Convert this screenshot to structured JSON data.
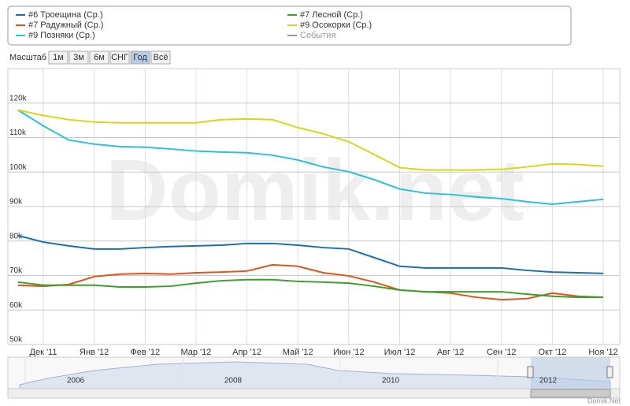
{
  "chart_data": {
    "type": "line",
    "categories": [
      null,
      "Дек '11",
      null,
      "Янв '12",
      null,
      "Фев '12",
      null,
      "Мар '12",
      null,
      "Апр '12",
      null,
      "Май '12",
      null,
      "Июн '12",
      null,
      "Июл '12",
      null,
      "Авг '12",
      null,
      "Сен '12",
      null,
      "Окт '12",
      null,
      "Ноя '12"
    ],
    "series": [
      {
        "name": "#6 Троещина (Ср.)",
        "color": "#1a6fae",
        "values": [
          81600,
          79700,
          78600,
          77700,
          77700,
          78100,
          78400,
          78600,
          78800,
          79300,
          79300,
          78800,
          78100,
          77700,
          75200,
          72700,
          72200,
          72200,
          72200,
          72200,
          71500,
          71000,
          70800,
          70600
        ]
      },
      {
        "name": "#7 Радужный (Ср.)",
        "color": "#e0541a",
        "values": [
          67200,
          66900,
          67400,
          69700,
          70400,
          70600,
          70400,
          70800,
          71000,
          71300,
          73100,
          72700,
          70800,
          69900,
          68100,
          65800,
          65300,
          64900,
          63700,
          63000,
          63300,
          64900,
          64000,
          63700
        ]
      },
      {
        "name": "#9 Позняки (Ср.)",
        "color": "#2cc1d3",
        "values": [
          118000,
          113400,
          109300,
          108100,
          107400,
          107200,
          106700,
          106100,
          105800,
          105600,
          104900,
          103500,
          101500,
          100100,
          97800,
          95100,
          93900,
          93500,
          92800,
          92300,
          91400,
          90700,
          91400,
          92100
        ]
      },
      {
        "name": "#7 Лесной (Ср.)",
        "color": "#3aa02a",
        "values": [
          68100,
          67200,
          67200,
          67200,
          66700,
          66700,
          66900,
          67800,
          68500,
          68800,
          68800,
          68300,
          68100,
          67800,
          66900,
          65800,
          65300,
          65300,
          65300,
          65300,
          64600,
          64000,
          63700,
          63700
        ]
      },
      {
        "name": "#9 Осокорки (Ср.)",
        "color": "#d6d61c",
        "values": [
          118000,
          116400,
          115200,
          114500,
          114300,
          114300,
          114300,
          114300,
          115200,
          115400,
          115200,
          112900,
          111100,
          108800,
          105100,
          101300,
          100600,
          100600,
          100600,
          100800,
          101500,
          102400,
          102200,
          101700
        ]
      }
    ],
    "events_label": "События",
    "ylim": [
      50000,
      130000
    ],
    "yticks": [
      {
        "value": 50000,
        "label": "50k"
      },
      {
        "value": 60000,
        "label": "60k"
      },
      {
        "value": 70000,
        "label": "70k"
      },
      {
        "value": 80000,
        "label": "80k"
      },
      {
        "value": 90000,
        "label": "90k"
      },
      {
        "value": 100000,
        "label": "100k"
      },
      {
        "value": 110000,
        "label": "110k"
      },
      {
        "value": 120000,
        "label": "120k"
      }
    ],
    "grid": true,
    "range_selector": {
      "label": "Масштаб",
      "buttons": [
        "1м",
        "3м",
        "6м",
        "СНГ",
        "Год",
        "Всё"
      ],
      "selected": 4
    },
    "navigator_years": [
      "2006",
      "2008",
      "2010",
      "2012"
    ],
    "watermark": "Domik.net",
    "credit": "Domik.Net"
  }
}
